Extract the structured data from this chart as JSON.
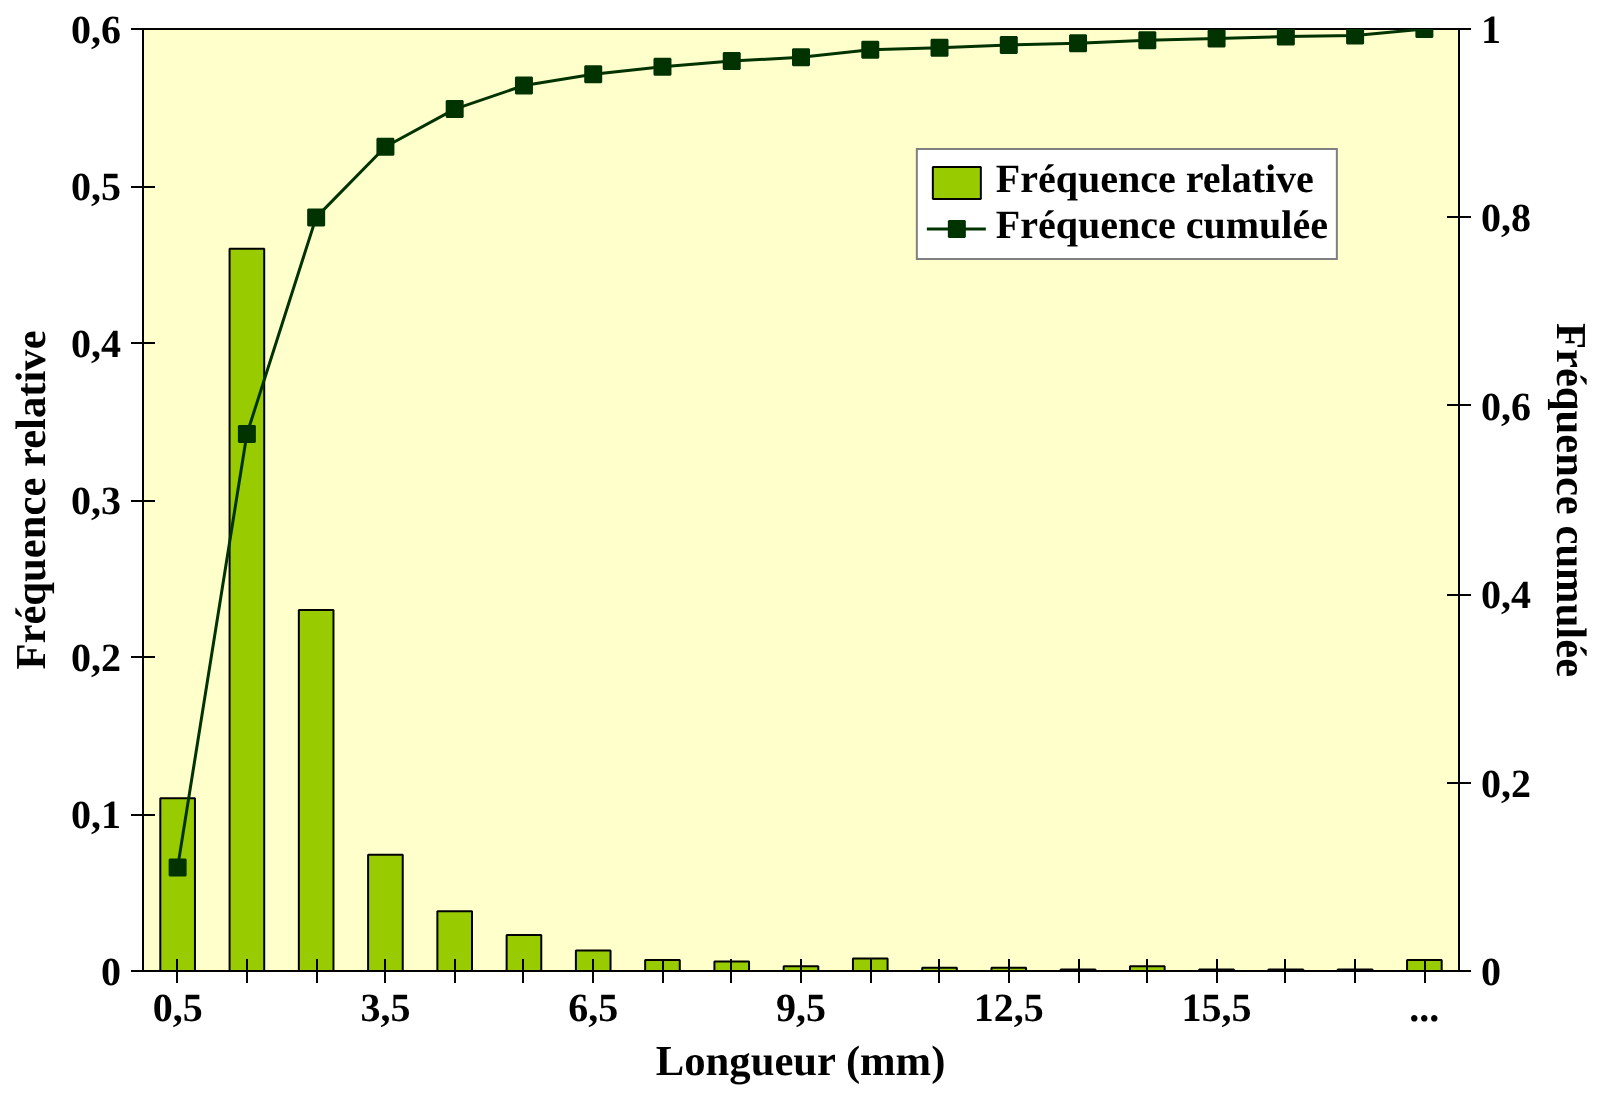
{
  "chart_data": {
    "type": "bar",
    "xlabel": "Longueur (mm)",
    "ylabel": "Fréquence relative",
    "y2label": "Fréquence cumulée",
    "categories": [
      "0,5",
      null,
      null,
      "3,5",
      null,
      null,
      "6,5",
      null,
      null,
      "9,5",
      null,
      null,
      "12,5",
      null,
      null,
      "15,5",
      null,
      null,
      "..."
    ],
    "series": [
      {
        "name": "Fréquence relative",
        "color": "#99cc00",
        "values": [
          0.11,
          0.46,
          0.23,
          0.074,
          0.038,
          0.023,
          0.013,
          0.007,
          0.006,
          0.003,
          0.008,
          0.002,
          0.002,
          0.001,
          0.003,
          0.001,
          0.001,
          0.001,
          0.007
        ]
      },
      {
        "name": "Fréquence cumulée",
        "type": "line",
        "axis": "y2",
        "color": "#003300",
        "marker": "square",
        "values": [
          0.11,
          0.57,
          0.8,
          0.875,
          0.915,
          0.94,
          0.952,
          0.96,
          0.966,
          0.97,
          0.978,
          0.98,
          0.983,
          0.985,
          0.988,
          0.99,
          0.992,
          0.993,
          1.0
        ]
      }
    ],
    "ylim": [
      0,
      0.6
    ],
    "yticks": [
      0,
      {
        "value": 0.1,
        "label": "0,1"
      },
      {
        "value": 0.2,
        "label": "0,2"
      },
      {
        "value": 0.3,
        "label": "0,3"
      },
      {
        "value": 0.4,
        "label": "0,4"
      },
      {
        "value": 0.5,
        "label": "0,5"
      },
      {
        "value": 0.6,
        "label": "0,6"
      }
    ],
    "y2lim": [
      0,
      1
    ],
    "y2ticks": [
      0,
      {
        "value": 0.2,
        "label": "0,2"
      },
      {
        "value": 0.4,
        "label": "0,4"
      },
      {
        "value": 0.6,
        "label": "0,6"
      },
      {
        "value": 0.8,
        "label": "0,8"
      },
      1
    ],
    "grid": false,
    "legend": "top right"
  }
}
